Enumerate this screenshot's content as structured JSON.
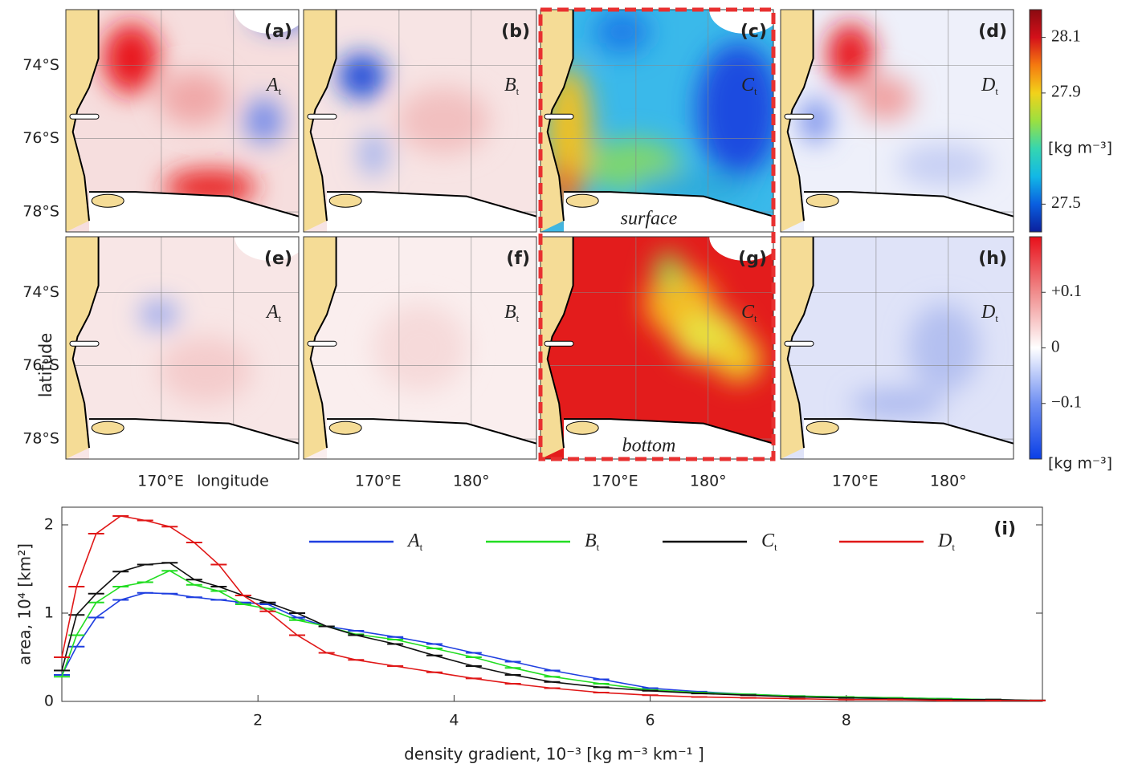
{
  "figure": {
    "panels": [
      {
        "label": "(a)",
        "var": "A",
        "sub": "t"
      },
      {
        "label": "(b)",
        "var": "B",
        "sub": "t"
      },
      {
        "label": "(c)",
        "var": "C",
        "sub": "t"
      },
      {
        "label": "(d)",
        "var": "D",
        "sub": "t"
      },
      {
        "label": "(e)",
        "var": "A",
        "sub": "t"
      },
      {
        "label": "(f)",
        "var": "B",
        "sub": "t"
      },
      {
        "label": "(g)",
        "var": "C",
        "sub": "t"
      },
      {
        "label": "(h)",
        "var": "D",
        "sub": "t"
      }
    ],
    "lat_labels": [
      "74°S",
      "76°S",
      "78°S"
    ],
    "lon_labels": [
      [
        "170°E",
        "longitude"
      ],
      [
        "170°E",
        "180°"
      ],
      [
        "170°E",
        "180°"
      ],
      [
        "170°E",
        "180°"
      ]
    ],
    "ylabel": "latitude",
    "annotations": [
      "surface",
      "bottom"
    ],
    "colorbars": [
      {
        "lim": [
          27.4,
          28.2
        ],
        "ticks": [
          28.1,
          27.9,
          27.5
        ],
        "unit": "[kg m⁻³]",
        "unit_at": 27.7,
        "colors": [
          "#0b1f9c",
          "#0a5fe0",
          "#12b8e6",
          "#35d6b0",
          "#9be040",
          "#f2d21a",
          "#f57a10",
          "#d4101a",
          "#8a0a10"
        ]
      },
      {
        "lim": [
          -0.2,
          0.2
        ],
        "ticks": [
          {
            "value": 0.1,
            "label": "+0.1"
          },
          0,
          {
            "value": -0.1,
            "label": "−0.1"
          }
        ],
        "unit": "[kg m⁻³]",
        "colors": [
          "#0a3fe6",
          "#6f8ff2",
          "#ffffff",
          "#f08c8c",
          "#e8101a"
        ]
      }
    ]
  },
  "chart_data": {
    "type": "line",
    "label": "(i)",
    "xlabel": "density gradient,    10⁻³ [kg m⁻³  km⁻¹ ]",
    "ylabel": "area, 10⁴ [km²]",
    "xlim": [
      0,
      10
    ],
    "ylim": [
      0,
      2.2
    ],
    "xticks": [
      2,
      4,
      6,
      8
    ],
    "yticks": [
      0,
      1,
      2
    ],
    "grid": false,
    "x": [
      0,
      0.15,
      0.35,
      0.6,
      0.85,
      1.1,
      1.35,
      1.6,
      1.85,
      2.1,
      2.4,
      2.7,
      3.0,
      3.4,
      3.8,
      4.2,
      4.6,
      5.0,
      5.5,
      6.0,
      6.5,
      7.0,
      7.5,
      8.0,
      8.5,
      9.0,
      9.5,
      9.95
    ],
    "series": [
      {
        "name": "A",
        "subscript": "t",
        "color": "#1f3fe0",
        "values": [
          0.3,
          0.62,
          0.95,
          1.15,
          1.23,
          1.22,
          1.18,
          1.15,
          1.12,
          1.1,
          0.95,
          0.85,
          0.8,
          0.73,
          0.65,
          0.55,
          0.45,
          0.35,
          0.25,
          0.15,
          0.11,
          0.08,
          0.06,
          0.05,
          0.04,
          0.03,
          0.02,
          0.01
        ]
      },
      {
        "name": "B",
        "subscript": "t",
        "color": "#22dd22",
        "values": [
          0.28,
          0.75,
          1.12,
          1.3,
          1.35,
          1.48,
          1.32,
          1.25,
          1.1,
          1.05,
          0.92,
          0.85,
          0.76,
          0.7,
          0.6,
          0.5,
          0.38,
          0.28,
          0.2,
          0.13,
          0.1,
          0.08,
          0.06,
          0.05,
          0.04,
          0.03,
          0.02,
          0.01
        ]
      },
      {
        "name": "C",
        "subscript": "t",
        "color": "#111111",
        "values": [
          0.35,
          0.98,
          1.22,
          1.47,
          1.55,
          1.57,
          1.38,
          1.3,
          1.2,
          1.12,
          1.0,
          0.85,
          0.75,
          0.65,
          0.52,
          0.4,
          0.3,
          0.22,
          0.16,
          0.12,
          0.09,
          0.07,
          0.05,
          0.04,
          0.03,
          0.02,
          0.02,
          0.01
        ]
      },
      {
        "name": "D",
        "subscript": "t",
        "color": "#e01818",
        "values": [
          0.5,
          1.3,
          1.9,
          2.1,
          2.05,
          1.98,
          1.8,
          1.55,
          1.2,
          1.02,
          0.75,
          0.55,
          0.47,
          0.4,
          0.33,
          0.26,
          0.2,
          0.15,
          0.1,
          0.07,
          0.05,
          0.04,
          0.03,
          0.02,
          0.02,
          0.01,
          0.01,
          0.01
        ]
      }
    ]
  }
}
